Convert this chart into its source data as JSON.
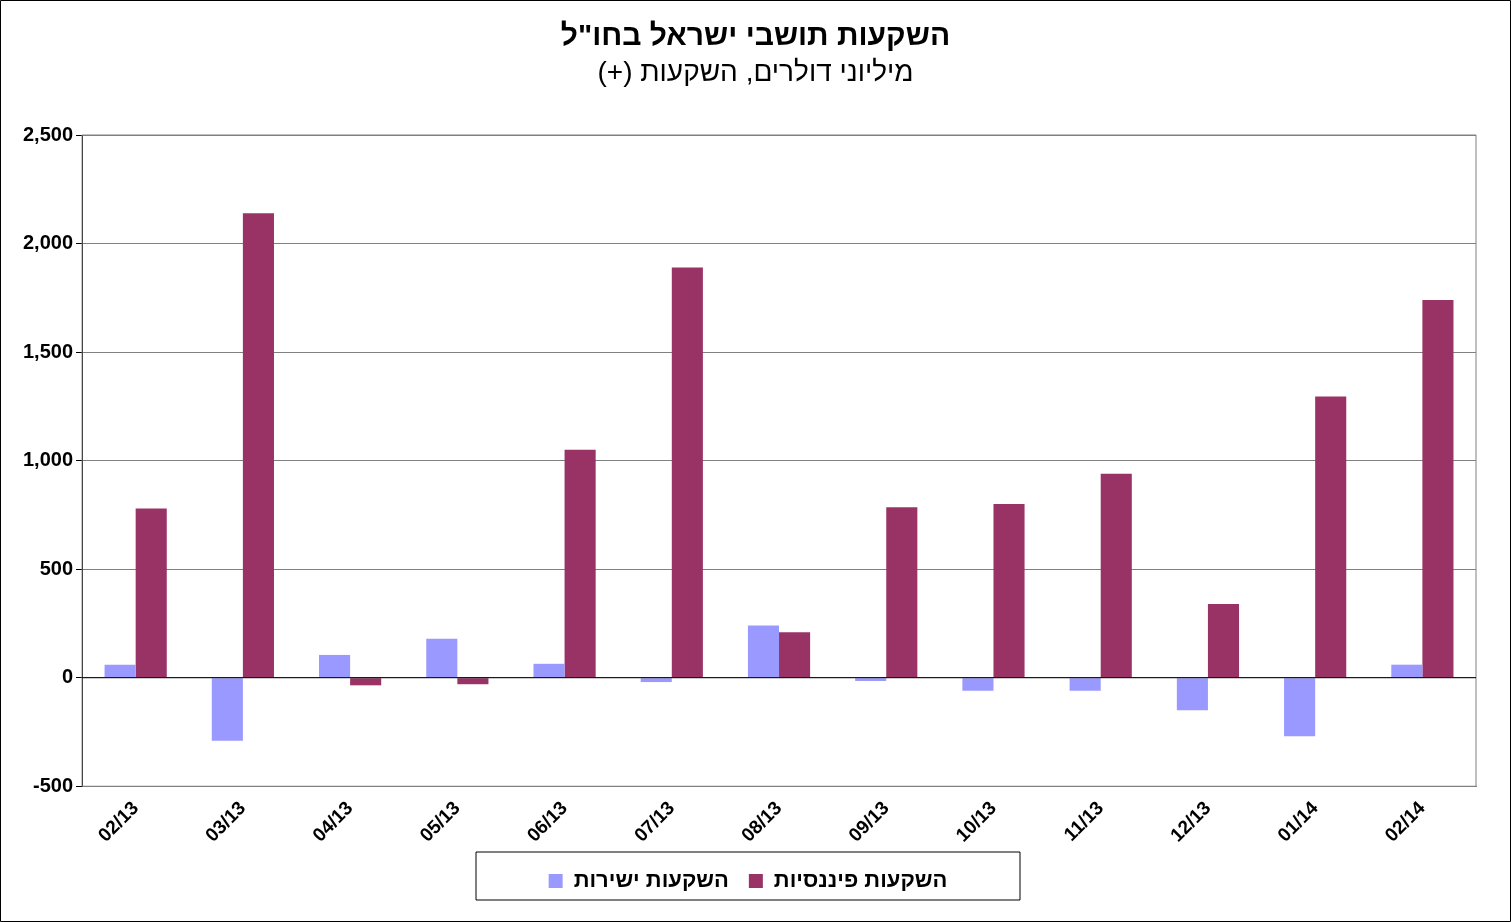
{
  "chart_data": {
    "type": "bar",
    "title": "השקעות תושבי ישראל בחו\"ל",
    "subtitle": "מיליוני דולרים, השקעות (+)",
    "categories": [
      "02/13",
      "03/13",
      "04/13",
      "05/13",
      "06/13",
      "07/13",
      "08/13",
      "09/13",
      "10/13",
      "11/13",
      "12/13",
      "01/14",
      "02/14"
    ],
    "series": [
      {
        "name": "השקעות ישירות",
        "color": "#9999ff",
        "values": [
          60,
          -290,
          105,
          180,
          64,
          -20,
          240,
          -15,
          -60,
          -60,
          -150,
          -270,
          60
        ]
      },
      {
        "name": "השקעות פיננסיות",
        "color": "#993366",
        "values": [
          780,
          2140,
          -35,
          -30,
          1050,
          1890,
          210,
          785,
          800,
          940,
          340,
          1295,
          1740
        ]
      }
    ],
    "ylim": [
      -500,
      2500
    ],
    "yticks": [
      {
        "value": -500,
        "label": "-500"
      },
      {
        "value": 0,
        "label": "0"
      },
      {
        "value": 500,
        "label": "500"
      },
      {
        "value": 1000,
        "label": "1,000"
      },
      {
        "value": 1500,
        "label": "1,500"
      },
      {
        "value": 2000,
        "label": "2,000"
      },
      {
        "value": 2500,
        "label": "2,500"
      }
    ],
    "grid": "y",
    "legend": "bottom"
  }
}
